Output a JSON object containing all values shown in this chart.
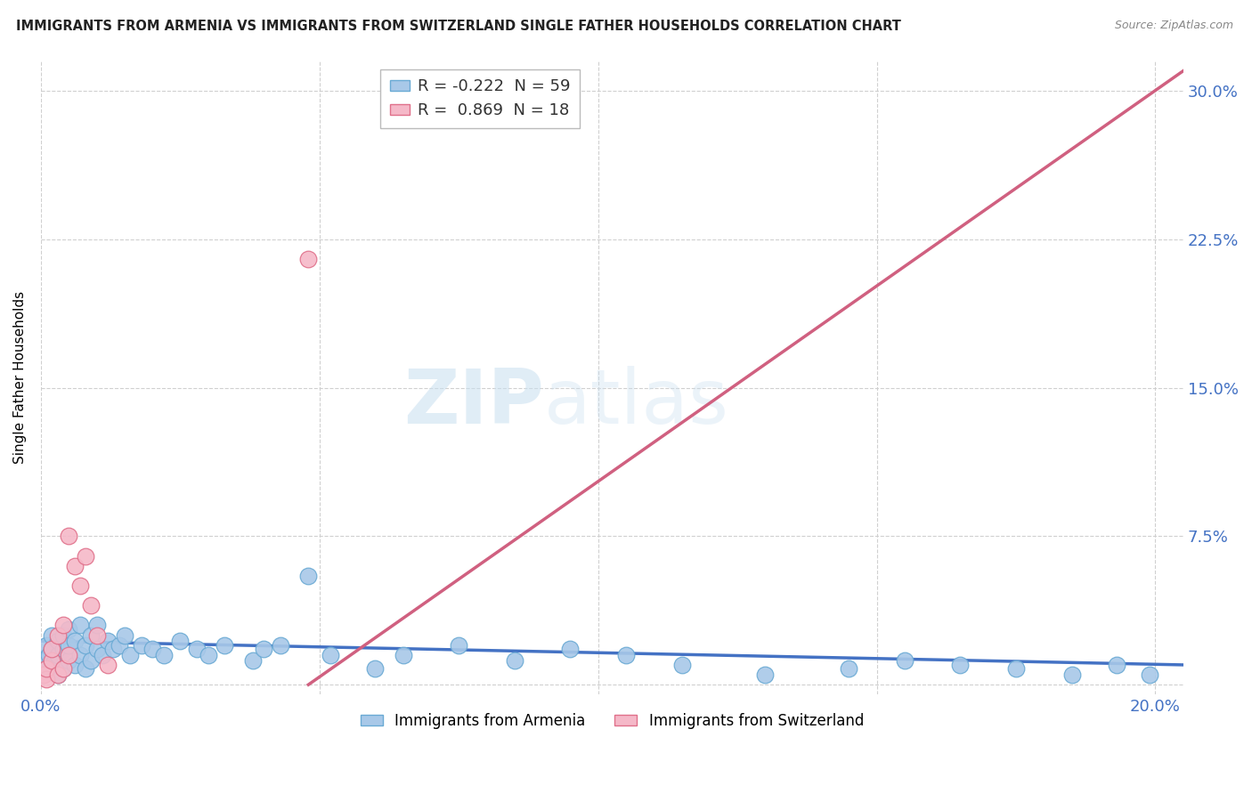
{
  "title": "IMMIGRANTS FROM ARMENIA VS IMMIGRANTS FROM SWITZERLAND SINGLE FATHER HOUSEHOLDS CORRELATION CHART",
  "source": "Source: ZipAtlas.com",
  "ylabel": "Single Father Households",
  "xlim": [
    0.0,
    0.205
  ],
  "ylim": [
    -0.005,
    0.315
  ],
  "yticks": [
    0.0,
    0.075,
    0.15,
    0.225,
    0.3
  ],
  "ytick_labels": [
    "",
    "7.5%",
    "15.0%",
    "22.5%",
    "30.0%"
  ],
  "xticks": [
    0.0,
    0.05,
    0.1,
    0.15,
    0.2
  ],
  "xtick_labels": [
    "0.0%",
    "",
    "",
    "",
    "20.0%"
  ],
  "armenia_color": "#a8c8e8",
  "armenia_edge": "#6aaad4",
  "switzerland_color": "#f5b8c8",
  "switzerland_edge": "#e0708a",
  "trend_armenia_color": "#4472c4",
  "trend_switzerland_color": "#d06080",
  "legend_label_armenia": "Immigrants from Armenia",
  "legend_label_switzerland": "Immigrants from Switzerland",
  "armenia_R": -0.222,
  "armenia_N": 59,
  "switzerland_R": 0.869,
  "switzerland_N": 18,
  "watermark_zip": "ZIP",
  "watermark_atlas": "atlas",
  "background_color": "#ffffff",
  "grid_color": "#d0d0d0",
  "tick_color": "#4472c4",
  "title_color": "#222222",
  "source_color": "#888888",
  "arm_trend_x0": 0.0,
  "arm_trend_x1": 0.205,
  "arm_trend_y0": 0.022,
  "arm_trend_y1": 0.01,
  "swi_trend_x0": 0.048,
  "swi_trend_x1": 0.205,
  "swi_trend_y0": 0.0,
  "swi_trend_y1": 0.31,
  "arm_scatter_x": [
    0.0005,
    0.001,
    0.001,
    0.0015,
    0.002,
    0.002,
    0.002,
    0.003,
    0.003,
    0.003,
    0.004,
    0.004,
    0.004,
    0.005,
    0.005,
    0.005,
    0.006,
    0.006,
    0.007,
    0.007,
    0.008,
    0.008,
    0.009,
    0.009,
    0.01,
    0.01,
    0.011,
    0.012,
    0.013,
    0.014,
    0.015,
    0.016,
    0.018,
    0.02,
    0.022,
    0.025,
    0.028,
    0.03,
    0.033,
    0.038,
    0.04,
    0.043,
    0.048,
    0.052,
    0.06,
    0.065,
    0.075,
    0.085,
    0.095,
    0.105,
    0.115,
    0.13,
    0.145,
    0.155,
    0.165,
    0.175,
    0.185,
    0.193,
    0.199
  ],
  "arm_scatter_y": [
    0.012,
    0.008,
    0.02,
    0.015,
    0.01,
    0.018,
    0.025,
    0.005,
    0.015,
    0.022,
    0.008,
    0.018,
    0.025,
    0.012,
    0.02,
    0.028,
    0.01,
    0.022,
    0.015,
    0.03,
    0.008,
    0.02,
    0.012,
    0.025,
    0.018,
    0.03,
    0.015,
    0.022,
    0.018,
    0.02,
    0.025,
    0.015,
    0.02,
    0.018,
    0.015,
    0.022,
    0.018,
    0.015,
    0.02,
    0.012,
    0.018,
    0.02,
    0.055,
    0.015,
    0.008,
    0.015,
    0.02,
    0.012,
    0.018,
    0.015,
    0.01,
    0.005,
    0.008,
    0.012,
    0.01,
    0.008,
    0.005,
    0.01,
    0.005
  ],
  "swi_scatter_x": [
    0.0005,
    0.001,
    0.001,
    0.002,
    0.002,
    0.003,
    0.003,
    0.004,
    0.004,
    0.005,
    0.005,
    0.006,
    0.007,
    0.008,
    0.009,
    0.01,
    0.012,
    0.048
  ],
  "swi_scatter_y": [
    0.005,
    0.003,
    0.008,
    0.012,
    0.018,
    0.025,
    0.005,
    0.03,
    0.008,
    0.075,
    0.015,
    0.06,
    0.05,
    0.065,
    0.04,
    0.025,
    0.01,
    0.215
  ]
}
